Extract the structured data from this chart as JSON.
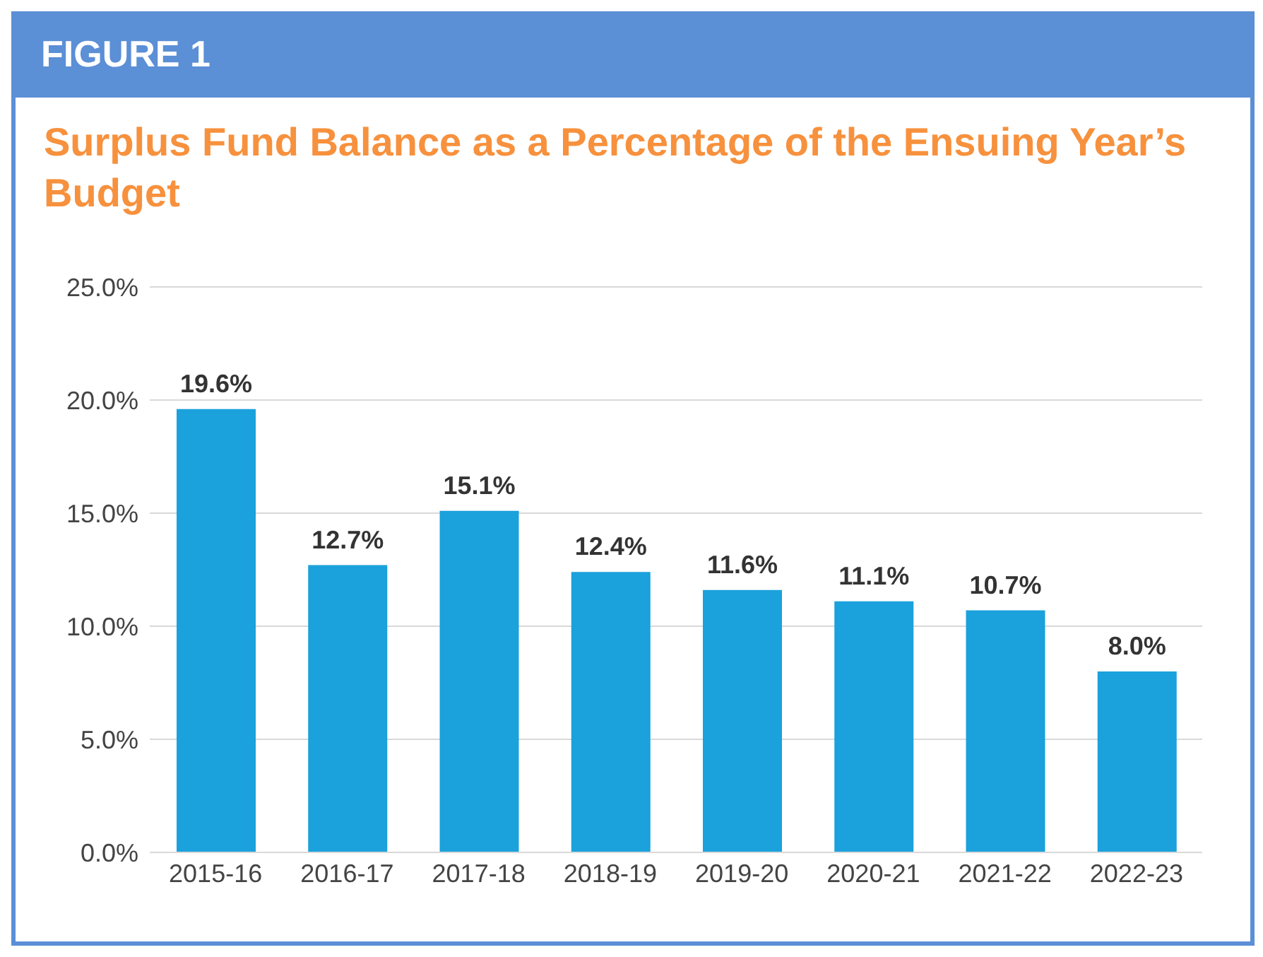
{
  "chart_data": {
    "type": "bar",
    "title": "Surplus Fund Balance as a Percentage of the Ensuing Year’s Budget",
    "annotations": [
      "FIGURE 1"
    ],
    "categories": [
      "2015-16",
      "2016-17",
      "2017-18",
      "2018-19",
      "2019-20",
      "2020-21",
      "2021-22",
      "2022-23"
    ],
    "values": [
      19.6,
      12.7,
      15.1,
      12.4,
      11.6,
      11.1,
      10.7,
      8.0
    ],
    "value_labels": [
      "19.6%",
      "12.7%",
      "15.1%",
      "12.4%",
      "11.6%",
      "11.1%",
      "10.7%",
      "8.0%"
    ],
    "color": "#1ba1dc",
    "ylim": [
      0,
      25
    ],
    "yticks": [
      {
        "value": 0,
        "label": "0.0%"
      },
      {
        "value": 5,
        "label": "5.0%"
      },
      {
        "value": 10,
        "label": "10.0%"
      },
      {
        "value": 15,
        "label": "15.0%"
      },
      {
        "value": 20,
        "label": "20.0%"
      },
      {
        "value": 25,
        "label": "25.0%"
      }
    ],
    "grid": "y"
  }
}
